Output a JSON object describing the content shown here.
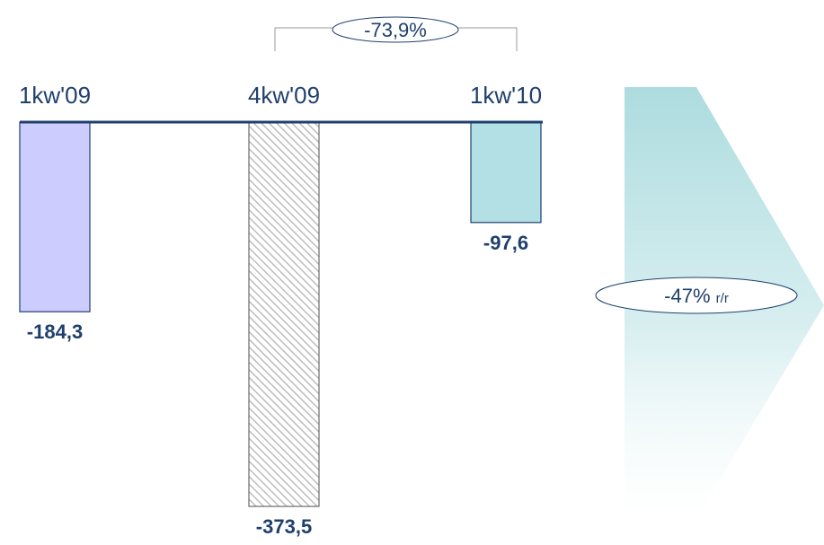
{
  "chart_data": {
    "type": "bar",
    "categories": [
      "1kw'09",
      "4kw'09",
      "1kw'10"
    ],
    "values": [
      -184.3,
      -373.5,
      -97.6
    ],
    "value_labels": [
      "-184,3",
      "-373,5",
      "-97,6"
    ],
    "ylim": [
      -373.5,
      0
    ],
    "grid": false,
    "legend": "none",
    "annotations": {
      "bracket_change": "-73,9%",
      "yoy_change": "-47%",
      "yoy_suffix": "r/r"
    },
    "colors": {
      "bar_1": "#ccccff",
      "bar_2_hatch": "#bdbdbd",
      "bar_3": "#b2e0e4",
      "axis": "#1f3f6e",
      "text": "#1f3f6e",
      "arrow": "#a8dadd"
    }
  }
}
